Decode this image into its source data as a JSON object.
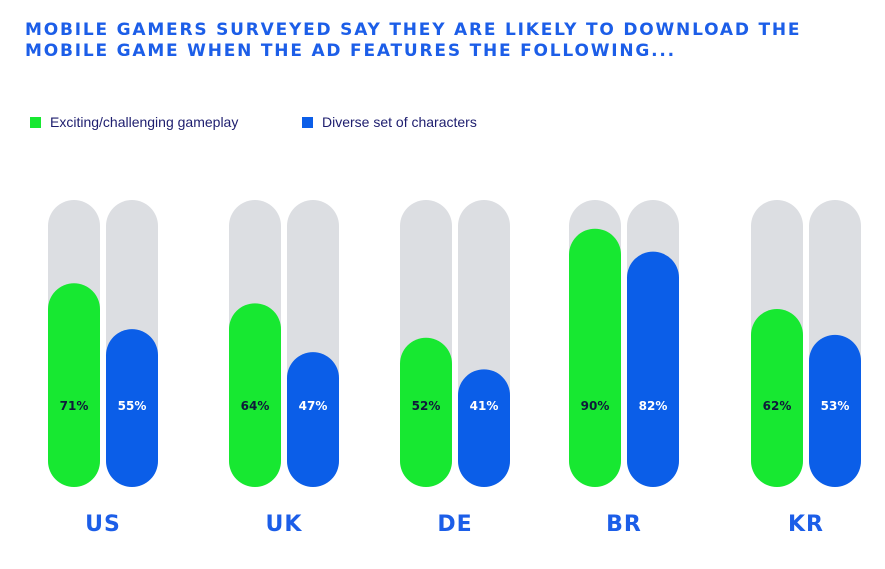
{
  "title_lines": [
    "MOBILE GAMERS SURVEYED SAY THEY ARE LIKELY TO DOWNLOAD THE",
    "MOBILE GAME WHEN THE AD FEATURES THE FOLLOWING..."
  ],
  "colors": {
    "title": "#1c5ee8",
    "track": "#dcdee2",
    "category_label": "#1c5ee8",
    "value_label_green": "#0f1a3a",
    "value_label_blue": "#ffffff",
    "legend_text": "#1d1d6e"
  },
  "chart_data": {
    "type": "bar",
    "title": "MOBILE GAMERS SURVEYED SAY THEY ARE LIKELY TO DOWNLOAD THE MOBILE GAME WHEN THE AD FEATURES THE FOLLOWING...",
    "categories": [
      "US",
      "UK",
      "DE",
      "BR",
      "KR"
    ],
    "series": [
      {
        "name": "Exciting/challenging gameplay",
        "color": "#17e831",
        "values": [
          71,
          64,
          52,
          90,
          62
        ],
        "labels": [
          "71%",
          "64%",
          "52%",
          "90%",
          "62%"
        ]
      },
      {
        "name": "Diverse set of characters",
        "color": "#0b5ee8",
        "values": [
          55,
          47,
          41,
          82,
          53
        ],
        "labels": [
          "55%",
          "47%",
          "41%",
          "82%",
          "53%"
        ]
      }
    ],
    "ylim": [
      0,
      100
    ],
    "grid": false,
    "legend_position": "top-left"
  }
}
